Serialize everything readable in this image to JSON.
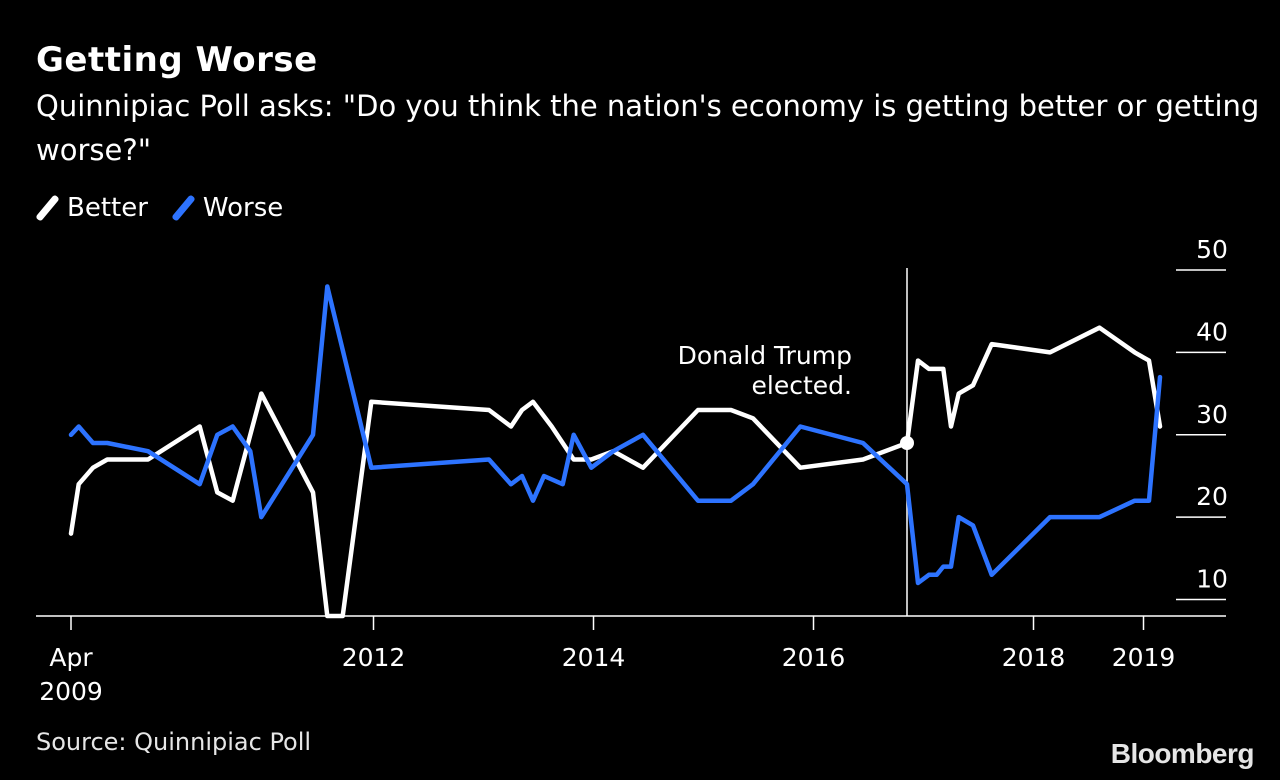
{
  "title": "Getting Worse",
  "subtitle": "Quinnipiac Poll asks: \"Do you think the nation's economy is getting better or getting worse?\"",
  "source": "Source: Quinnipiac Poll",
  "brand": "Bloomberg",
  "chart_data": {
    "type": "line",
    "title": "Getting Worse",
    "xlabel": "",
    "ylabel": "",
    "ylim": [
      8,
      50
    ],
    "xlim": [
      2009.0,
      2019.5
    ],
    "grid": false,
    "legend_position": "top-left",
    "yticks": [
      {
        "value": 50,
        "label": "50"
      },
      {
        "value": 40,
        "label": "40"
      },
      {
        "value": 30,
        "label": "30"
      },
      {
        "value": 20,
        "label": "20"
      },
      {
        "value": 10,
        "label": "10"
      }
    ],
    "xticks": [
      {
        "value": 2009.25,
        "label": "Apr",
        "sublabel": "2009"
      },
      {
        "value": 2012.0,
        "label": "2012"
      },
      {
        "value": 2014.0,
        "label": "2014"
      },
      {
        "value": 2016.0,
        "label": "2016"
      },
      {
        "value": 2018.0,
        "label": "2018"
      },
      {
        "value": 2019.0,
        "label": "2019"
      }
    ],
    "annotation": {
      "x": 2016.85,
      "y": 29,
      "text_lines": [
        "Donald Trump",
        "elected."
      ]
    },
    "series": [
      {
        "name": "Better",
        "color": "#ffffff",
        "points": [
          [
            2009.25,
            18
          ],
          [
            2009.32,
            24
          ],
          [
            2009.45,
            26
          ],
          [
            2009.58,
            27
          ],
          [
            2009.95,
            27
          ],
          [
            2010.42,
            31
          ],
          [
            2010.58,
            23
          ],
          [
            2010.72,
            22
          ],
          [
            2010.98,
            35
          ],
          [
            2011.45,
            23
          ],
          [
            2011.58,
            8
          ],
          [
            2011.72,
            8
          ],
          [
            2011.98,
            34
          ],
          [
            2013.05,
            33
          ],
          [
            2013.25,
            31
          ],
          [
            2013.35,
            33
          ],
          [
            2013.45,
            34
          ],
          [
            2013.62,
            31
          ],
          [
            2013.82,
            27
          ],
          [
            2013.98,
            27
          ],
          [
            2014.18,
            28
          ],
          [
            2014.45,
            26
          ],
          [
            2014.95,
            33
          ],
          [
            2015.25,
            33
          ],
          [
            2015.45,
            32
          ],
          [
            2015.88,
            26
          ],
          [
            2016.45,
            27
          ],
          [
            2016.85,
            29
          ],
          [
            2016.95,
            39
          ],
          [
            2017.05,
            38
          ],
          [
            2017.18,
            38
          ],
          [
            2017.25,
            31
          ],
          [
            2017.32,
            35
          ],
          [
            2017.45,
            36
          ],
          [
            2017.62,
            41
          ],
          [
            2018.15,
            40
          ],
          [
            2018.6,
            43
          ],
          [
            2018.92,
            40
          ],
          [
            2019.05,
            39
          ],
          [
            2019.15,
            31
          ]
        ]
      },
      {
        "name": "Worse",
        "color": "#2d73ff",
        "points": [
          [
            2009.25,
            30
          ],
          [
            2009.32,
            31
          ],
          [
            2009.45,
            29
          ],
          [
            2009.58,
            29
          ],
          [
            2009.95,
            28
          ],
          [
            2010.42,
            24
          ],
          [
            2010.58,
            30
          ],
          [
            2010.72,
            31
          ],
          [
            2010.88,
            28
          ],
          [
            2010.98,
            20
          ],
          [
            2011.45,
            30
          ],
          [
            2011.58,
            48
          ],
          [
            2011.98,
            26
          ],
          [
            2013.05,
            27
          ],
          [
            2013.25,
            24
          ],
          [
            2013.35,
            25
          ],
          [
            2013.45,
            22
          ],
          [
            2013.55,
            25
          ],
          [
            2013.72,
            24
          ],
          [
            2013.82,
            30
          ],
          [
            2013.98,
            26
          ],
          [
            2014.18,
            28
          ],
          [
            2014.45,
            30
          ],
          [
            2014.95,
            22
          ],
          [
            2015.25,
            22
          ],
          [
            2015.45,
            24
          ],
          [
            2015.88,
            31
          ],
          [
            2016.45,
            29
          ],
          [
            2016.85,
            24
          ],
          [
            2016.95,
            12
          ],
          [
            2017.05,
            13
          ],
          [
            2017.12,
            13
          ],
          [
            2017.18,
            14
          ],
          [
            2017.25,
            14
          ],
          [
            2017.32,
            20
          ],
          [
            2017.45,
            19
          ],
          [
            2017.62,
            13
          ],
          [
            2018.15,
            20
          ],
          [
            2018.6,
            20
          ],
          [
            2018.92,
            22
          ],
          [
            2019.05,
            22
          ],
          [
            2019.15,
            37
          ]
        ]
      }
    ]
  }
}
